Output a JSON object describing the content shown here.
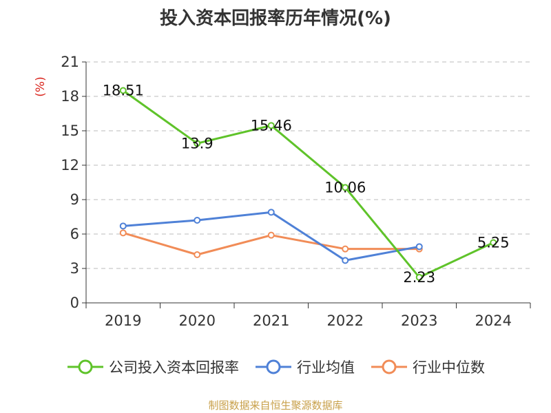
{
  "title": "投入资本回报率历年情况(%)",
  "source_text": "制图数据来自恒生聚源数据库",
  "colors": {
    "series1": "#5fc32a",
    "series2": "#4f81d7",
    "series3": "#f18c57",
    "unit": "#d9241c"
  },
  "chart_data": {
    "type": "line",
    "categories": [
      "2019",
      "2020",
      "2021",
      "2022",
      "2023",
      "2024"
    ],
    "y_unit_label": "(%)",
    "ylim": [
      0,
      21
    ],
    "yticks": [
      0,
      3,
      6,
      9,
      12,
      15,
      18,
      21
    ],
    "grid": true,
    "legend_position": "bottom",
    "series": [
      {
        "name": "公司投入资本回报率",
        "values": [
          18.51,
          13.9,
          15.46,
          10.06,
          2.23,
          5.25
        ],
        "labels": [
          "18.51",
          "13.9",
          "15.46",
          "10.06",
          "2.23",
          "5.25"
        ]
      },
      {
        "name": "行业均值",
        "values": [
          6.7,
          7.2,
          7.9,
          3.7,
          4.9,
          null
        ]
      },
      {
        "name": "行业中位数",
        "values": [
          6.1,
          4.2,
          5.9,
          4.7,
          4.7,
          null
        ]
      }
    ]
  }
}
